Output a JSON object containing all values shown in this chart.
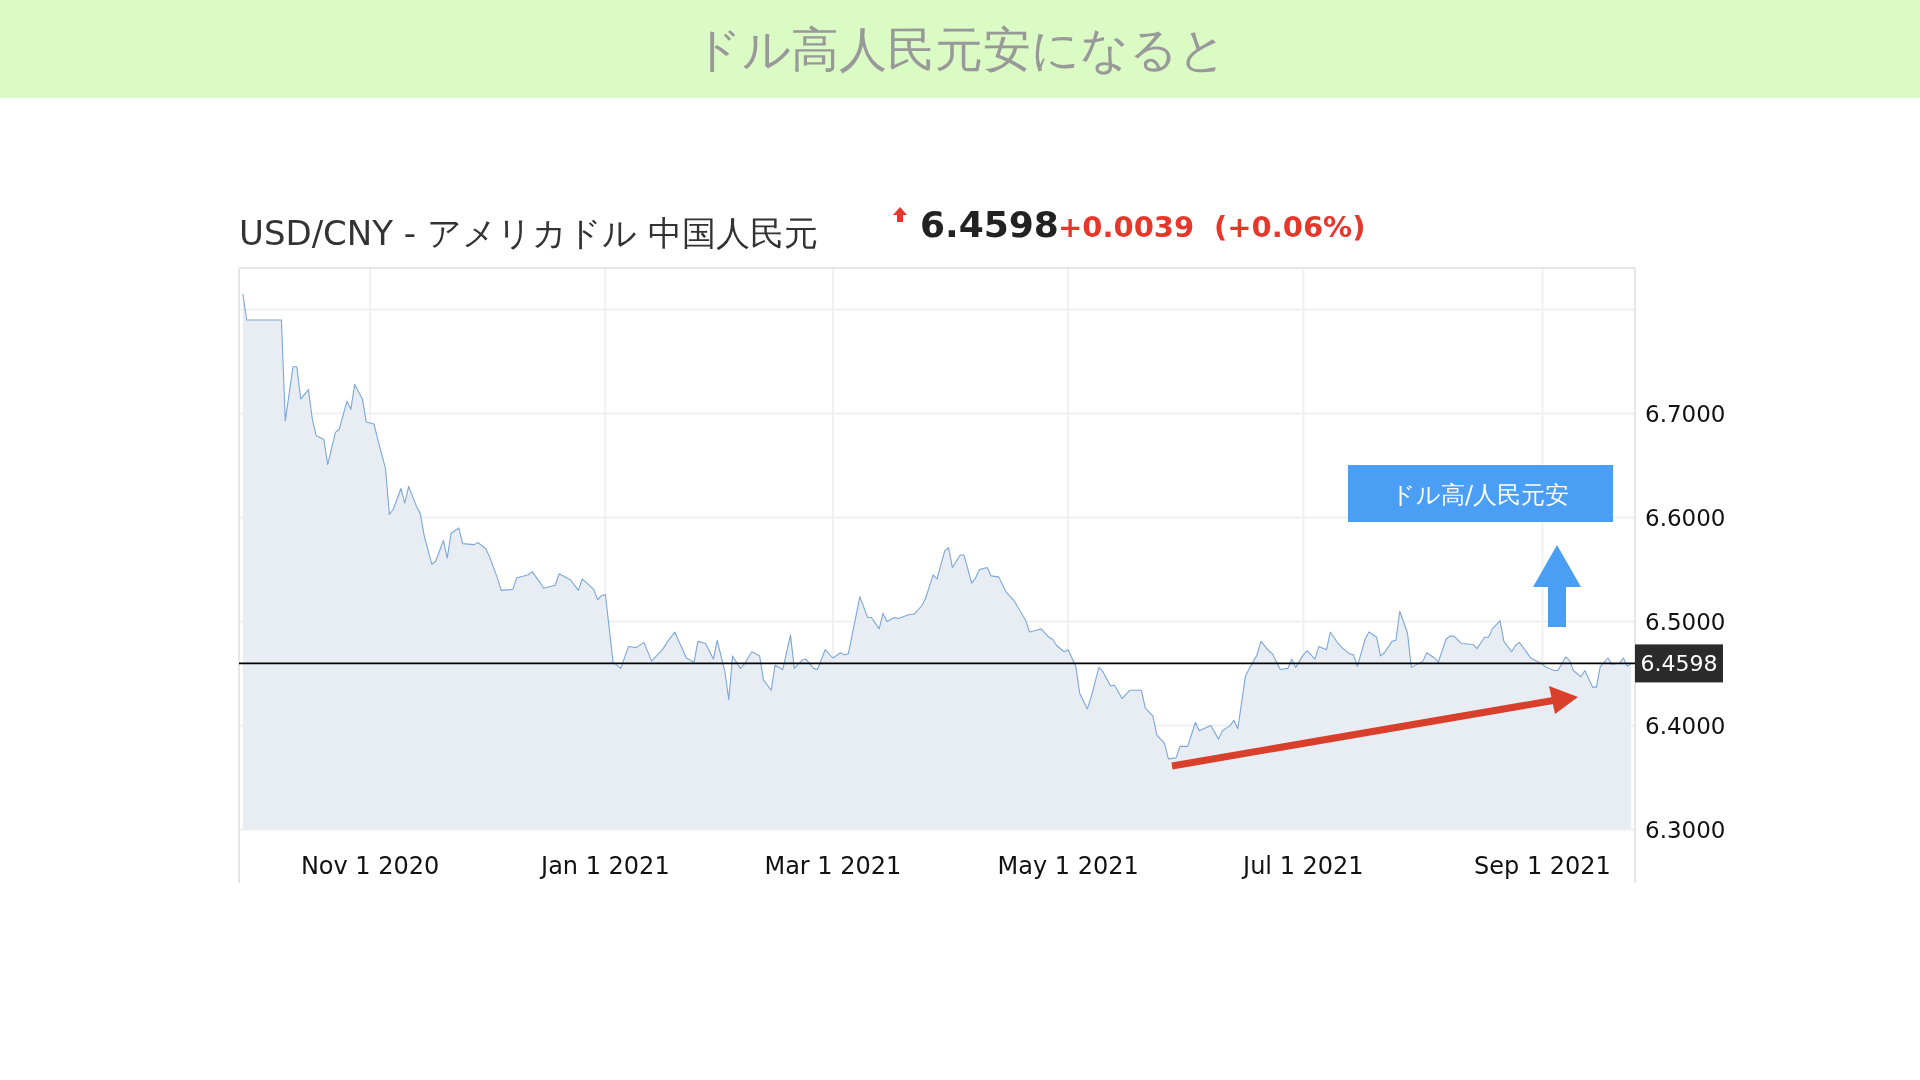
{
  "chart_data": {
    "type": "area",
    "title": "ドル高人民元安になると",
    "subtitle": "USD/CNY - アメリカドル 中国人民元",
    "annotations": [
      "6.4598",
      "+0.0039",
      "(+0.06%)",
      "ドル高/人民元安"
    ],
    "xlim": [
      "2020-09-28",
      "2021-09-25"
    ],
    "xticks": [
      {
        "value": "2020-11-01",
        "label": "Nov 1 2020"
      },
      {
        "value": "2021-01-01",
        "label": "Jan 1 2021"
      },
      {
        "value": "2021-03-01",
        "label": "Mar 1 2021"
      },
      {
        "value": "2021-05-01",
        "label": "May 1 2021"
      },
      {
        "value": "2021-07-01",
        "label": "Jul 1 2021"
      },
      {
        "value": "2021-09-01",
        "label": "Sep 1 2021"
      }
    ],
    "ylim": [
      6.3,
      6.84
    ],
    "yticks": [
      {
        "value": 6.3,
        "label": "6.3000"
      },
      {
        "value": 6.4,
        "label": "6.4000"
      },
      {
        "value": 6.5,
        "label": "6.5000"
      },
      {
        "value": 6.6,
        "label": "6.6000"
      },
      {
        "value": 6.7,
        "label": "6.7000"
      },
      {
        "value": 6.8,
        "label": null
      }
    ],
    "grid": true,
    "marker": "none",
    "line_style": "solid",
    "ref_lines": [
      {
        "axis": "y",
        "value": 6.4598,
        "label": "6.4598",
        "color": "#000000"
      }
    ],
    "series": [
      {
        "color": "#7ba7d7",
        "x": [
          "2020-09-29",
          "2020-09-30",
          "2020-10-04",
          "2020-10-09",
          "2020-10-10",
          "2020-10-12",
          "2020-10-13",
          "2020-10-14",
          "2020-10-16",
          "2020-10-17",
          "2020-10-18",
          "2020-10-20",
          "2020-10-21",
          "2020-10-23",
          "2020-10-24",
          "2020-10-26",
          "2020-10-27",
          "2020-10-28",
          "2020-10-30",
          "2020-10-31",
          "2020-11-02",
          "2020-11-03",
          "2020-11-05",
          "2020-11-06",
          "2020-11-07",
          "2020-11-09",
          "2020-11-10",
          "2020-11-11",
          "2020-11-13",
          "2020-11-14",
          "2020-11-15",
          "2020-11-17",
          "2020-11-18",
          "2020-11-20",
          "2020-11-21",
          "2020-11-22",
          "2020-11-24",
          "2020-11-25",
          "2020-11-28",
          "2020-11-29",
          "2020-12-01",
          "2020-12-02",
          "2020-12-04",
          "2020-12-05",
          "2020-12-08",
          "2020-12-09",
          "2020-12-12",
          "2020-12-13",
          "2020-12-15",
          "2020-12-16",
          "2020-12-19",
          "2020-12-20",
          "2020-12-23",
          "2020-12-25",
          "2020-12-26",
          "2020-12-29",
          "2020-12-30",
          "2020-12-31",
          "2021-01-01",
          "2021-01-03",
          "2021-01-05",
          "2021-01-07",
          "2021-01-09",
          "2021-01-11",
          "2021-01-13",
          "2021-01-16",
          "2021-01-17",
          "2021-01-19",
          "2021-01-22",
          "2021-01-24",
          "2021-01-25",
          "2021-01-27",
          "2021-01-29",
          "2021-01-30",
          "2021-02-01",
          "2021-02-02",
          "2021-02-03",
          "2021-02-05",
          "2021-02-06",
          "2021-02-08",
          "2021-02-10",
          "2021-02-11",
          "2021-02-13",
          "2021-02-14",
          "2021-02-16",
          "2021-02-18",
          "2021-02-19",
          "2021-02-21",
          "2021-02-22",
          "2021-02-24",
          "2021-02-25",
          "2021-02-27",
          "2021-03-01",
          "2021-03-03",
          "2021-03-04",
          "2021-03-05",
          "2021-03-08",
          "2021-03-10",
          "2021-03-11",
          "2021-03-13",
          "2021-03-14",
          "2021-03-15",
          "2021-03-17",
          "2021-03-18",
          "2021-03-21",
          "2021-03-22",
          "2021-03-24",
          "2021-03-25",
          "2021-03-27",
          "2021-03-28",
          "2021-03-30",
          "2021-03-31",
          "2021-04-01",
          "2021-04-03",
          "2021-04-04",
          "2021-04-06",
          "2021-04-07",
          "2021-04-08",
          "2021-04-10",
          "2021-04-11",
          "2021-04-13",
          "2021-04-15",
          "2021-04-17",
          "2021-04-20",
          "2021-04-21",
          "2021-04-23",
          "2021-04-24",
          "2021-04-26",
          "2021-04-27",
          "2021-04-28",
          "2021-04-30",
          "2021-05-01",
          "2021-05-03",
          "2021-05-04",
          "2021-05-06",
          "2021-05-07",
          "2021-05-09",
          "2021-05-10",
          "2021-05-12",
          "2021-05-13",
          "2021-05-15",
          "2021-05-17",
          "2021-05-20",
          "2021-05-21",
          "2021-05-23",
          "2021-05-24",
          "2021-05-26",
          "2021-05-27",
          "2021-05-29",
          "2021-05-30",
          "2021-06-01",
          "2021-06-03",
          "2021-06-04",
          "2021-06-07",
          "2021-06-09",
          "2021-06-10",
          "2021-06-12",
          "2021-06-13",
          "2021-06-14",
          "2021-06-16",
          "2021-06-17",
          "2021-06-19",
          "2021-06-20",
          "2021-06-22",
          "2021-06-23",
          "2021-06-25",
          "2021-06-27",
          "2021-06-28",
          "2021-06-29",
          "2021-07-01",
          "2021-07-02",
          "2021-07-04",
          "2021-07-05",
          "2021-07-07",
          "2021-07-08",
          "2021-07-10",
          "2021-07-11",
          "2021-07-13",
          "2021-07-14",
          "2021-07-15",
          "2021-07-17",
          "2021-07-18",
          "2021-07-20",
          "2021-07-21",
          "2021-07-22",
          "2021-07-24",
          "2021-07-25",
          "2021-07-26",
          "2021-07-28",
          "2021-07-29",
          "2021-08-01",
          "2021-08-02",
          "2021-08-04",
          "2021-08-05",
          "2021-08-07",
          "2021-08-08",
          "2021-08-09",
          "2021-08-11",
          "2021-08-14",
          "2021-08-15",
          "2021-08-17",
          "2021-08-18",
          "2021-08-19",
          "2021-08-21",
          "2021-08-22",
          "2021-08-24",
          "2021-08-25",
          "2021-08-26",
          "2021-08-28",
          "2021-08-29",
          "2021-08-31",
          "2021-09-01",
          "2021-09-02",
          "2021-09-04",
          "2021-09-05",
          "2021-09-07",
          "2021-09-08",
          "2021-09-09",
          "2021-09-11",
          "2021-09-12",
          "2021-09-14",
          "2021-09-15",
          "2021-09-16",
          "2021-09-18",
          "2021-09-19",
          "2021-09-21",
          "2021-09-22",
          "2021-09-23",
          "2021-09-24"
        ],
        "values": [
          6.815,
          6.79,
          6.79,
          6.79,
          6.693,
          6.745,
          6.745,
          6.714,
          6.723,
          6.695,
          6.679,
          6.675,
          6.651,
          6.682,
          6.685,
          6.712,
          6.704,
          6.728,
          6.714,
          6.692,
          6.69,
          6.675,
          6.647,
          6.603,
          6.608,
          6.628,
          6.614,
          6.63,
          6.611,
          6.604,
          6.583,
          6.555,
          6.558,
          6.578,
          6.561,
          6.585,
          6.59,
          6.575,
          6.574,
          6.576,
          6.57,
          6.562,
          6.542,
          6.53,
          6.531,
          6.542,
          6.545,
          6.548,
          6.538,
          6.532,
          6.535,
          6.546,
          6.54,
          6.53,
          6.541,
          6.531,
          6.521,
          6.525,
          6.526,
          6.461,
          6.455,
          6.476,
          6.475,
          6.48,
          6.462,
          6.474,
          6.48,
          6.49,
          6.465,
          6.461,
          6.481,
          6.479,
          6.464,
          6.482,
          6.452,
          6.425,
          6.467,
          6.455,
          6.459,
          6.471,
          6.467,
          6.444,
          6.434,
          6.458,
          6.454,
          6.487,
          6.455,
          6.463,
          6.464,
          6.455,
          6.454,
          6.473,
          6.465,
          6.47,
          6.468,
          6.469,
          6.524,
          6.504,
          6.504,
          6.493,
          6.508,
          6.5,
          6.504,
          6.503,
          6.507,
          6.507,
          6.515,
          6.522,
          6.545,
          6.541,
          6.568,
          6.571,
          6.552,
          6.564,
          6.564,
          6.537,
          6.542,
          6.55,
          6.552,
          6.544,
          6.543,
          6.528,
          6.52,
          6.501,
          6.49,
          6.492,
          6.493,
          6.485,
          6.483,
          6.477,
          6.471,
          6.473,
          6.457,
          6.431,
          6.416,
          6.428,
          6.456,
          6.452,
          6.438,
          6.439,
          6.426,
          6.434,
          6.434,
          6.417,
          6.409,
          6.391,
          6.383,
          6.368,
          6.369,
          6.38,
          6.38,
          6.403,
          6.395,
          6.4,
          6.387,
          6.395,
          6.4,
          6.405,
          6.397,
          6.448,
          6.455,
          6.468,
          6.481,
          6.472,
          6.469,
          6.454,
          6.455,
          6.464,
          6.456,
          6.468,
          6.472,
          6.464,
          6.476,
          6.473,
          6.49,
          6.479,
          6.475,
          6.469,
          6.468,
          6.457,
          6.483,
          6.49,
          6.485,
          6.467,
          6.47,
          6.481,
          6.482,
          6.51,
          6.489,
          6.456,
          6.462,
          6.47,
          6.465,
          6.461,
          6.483,
          6.486,
          6.486,
          6.479,
          6.478,
          6.474,
          6.485,
          6.485,
          6.493,
          6.501,
          6.481,
          6.471,
          6.477,
          6.48,
          6.47,
          6.465,
          6.461,
          6.459,
          6.456,
          6.453,
          6.453,
          6.466,
          6.463,
          6.453,
          6.447,
          6.453,
          6.437,
          6.437,
          6.457,
          6.465,
          6.459,
          6.46,
          6.465,
          6.457,
          6.46
        ]
      }
    ]
  }
}
